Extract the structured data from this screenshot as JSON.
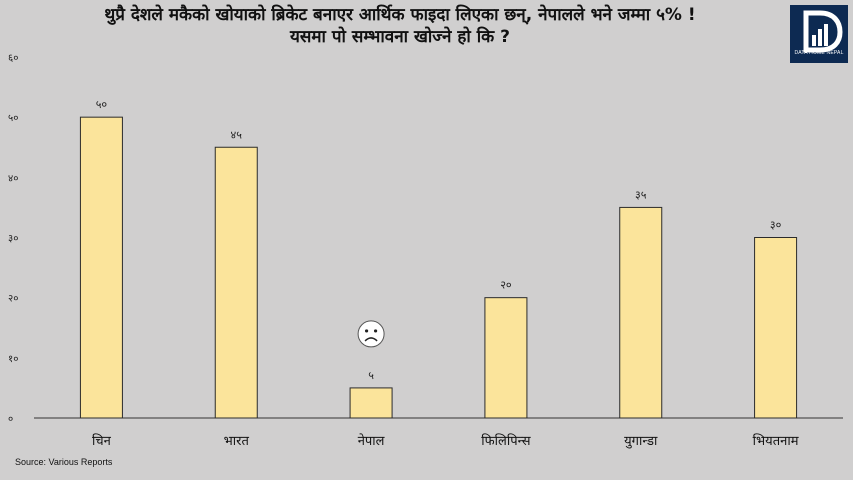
{
  "title": {
    "line1": "थुप्रै देशले मकैको खोयाको ब्रिकेट बनाएर आर्थिक फाइदा लिएका छन्, नेपालले भने जम्मा ५% !",
    "line2": "यसमा पो सम्भावना खोज्ने हो कि ?"
  },
  "logo": {
    "text": "DATA HOME NEPAL"
  },
  "source": "Source:  Various Reports",
  "colors": {
    "bar_fill": "#fbe49b",
    "bar_stroke": "#2b2b2b",
    "background": "#d0cfcf"
  },
  "annotation": {
    "category": "नेपाल",
    "icon": "sad-face-emoji"
  },
  "chart_data": {
    "type": "bar",
    "categories": [
      "चिन",
      "भारत",
      "नेपाल",
      "फिलिपिन्स",
      "युगान्डा",
      "भियतनाम"
    ],
    "values": [
      50,
      45,
      5,
      20,
      35,
      30
    ],
    "value_labels": [
      "५०",
      "४५",
      "५",
      "२०",
      "३५",
      "३०"
    ],
    "yticks": [
      0,
      10,
      20,
      30,
      40,
      50,
      60
    ],
    "ytick_labels": [
      "०",
      "१०",
      "२०",
      "३०",
      "४०",
      "५०",
      "६०"
    ],
    "ylim": [
      0,
      60
    ],
    "title": "",
    "xlabel": "",
    "ylabel": "",
    "grid": false,
    "legend": "none"
  }
}
